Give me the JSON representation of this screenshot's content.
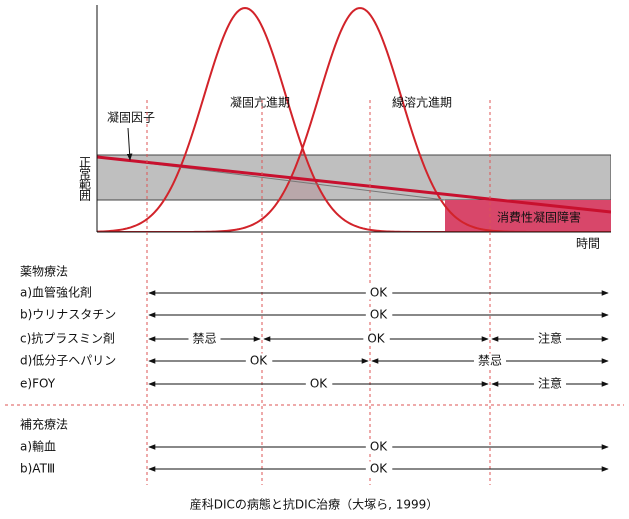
{
  "diagram": {
    "labels": {
      "coagulation_factor": "凝固因子",
      "hypercoagulation": "凝固亢進期",
      "hyperfibrinolysis": "線溶亢進期",
      "normal_range": "正常範囲",
      "consumptive_coagulopathy": "消費性凝固障害",
      "time": "時間"
    },
    "sections": [
      {
        "title": "薬物療法",
        "rows": [
          {
            "label": "a)血管強化剤",
            "segments": [
              "OK"
            ]
          },
          {
            "label": "b)ウリナスタチン",
            "segments": [
              "OK"
            ]
          },
          {
            "label": "c)抗プラスミン剤",
            "segments": [
              "禁忌",
              "OK",
              "注意"
            ]
          },
          {
            "label": "d)低分子ヘパリン",
            "segments": [
              "OK",
              "禁忌"
            ]
          },
          {
            "label": "e)FOY",
            "segments": [
              "OK",
              "注意"
            ]
          }
        ]
      },
      {
        "title": "補充療法",
        "rows": [
          {
            "label": "a)輸血",
            "segments": [
              "OK"
            ]
          },
          {
            "label": "b)ATⅢ",
            "segments": [
              "OK"
            ]
          }
        ]
      }
    ],
    "caption": "産科DICの病態と抗DIC治療（大塚ら, 1999）"
  }
}
